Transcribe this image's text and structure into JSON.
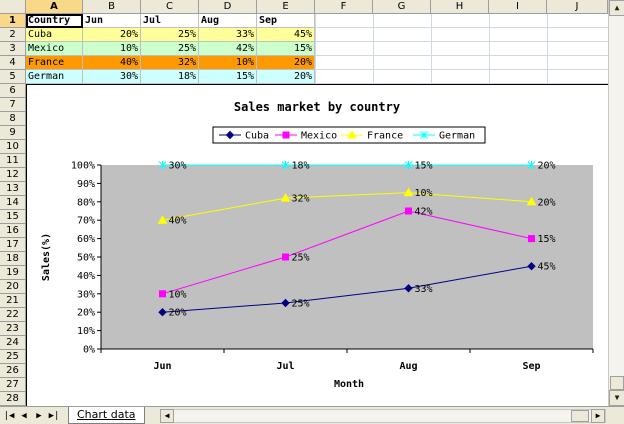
{
  "columns": [
    "A",
    "B",
    "C",
    "D",
    "E",
    "F",
    "G",
    "H",
    "I",
    "J"
  ],
  "rows": [
    "1",
    "2",
    "3",
    "4",
    "5",
    "6",
    "7",
    "8",
    "9",
    "10",
    "11",
    "12",
    "13",
    "14",
    "15",
    "16",
    "17",
    "18",
    "19",
    "20",
    "21",
    "22",
    "23",
    "24",
    "25",
    "26",
    "27",
    "28"
  ],
  "table": {
    "header": [
      "Country",
      "Jun",
      "Jul",
      "Aug",
      "Sep"
    ],
    "rows": [
      {
        "country": "Cuba",
        "values": [
          "20%",
          "25%",
          "33%",
          "45%"
        ],
        "fill": "#ffff99"
      },
      {
        "country": "Mexico",
        "values": [
          "10%",
          "25%",
          "42%",
          "15%"
        ],
        "fill": "#ccffcc"
      },
      {
        "country": "France",
        "values": [
          "40%",
          "32%",
          "10%",
          "20%"
        ],
        "fill": "#ff9900"
      },
      {
        "country": "German",
        "values": [
          "30%",
          "18%",
          "15%",
          "20%"
        ],
        "fill": "#ccffff"
      }
    ]
  },
  "chart_data": {
    "type": "line",
    "title": "Sales market by country",
    "xlabel": "Month",
    "ylabel": "Sales(%)",
    "categories": [
      "Jun",
      "Jul",
      "Aug",
      "Sep"
    ],
    "ylim": [
      0,
      100
    ],
    "yticks": [
      "0%",
      "10%",
      "20%",
      "30%",
      "40%",
      "50%",
      "60%",
      "70%",
      "80%",
      "90%",
      "100%"
    ],
    "legend_position": "top",
    "plot_background": "#c0c0c0",
    "stacked": "100%",
    "series": [
      {
        "name": "Cuba",
        "color": "#000080",
        "marker": "diamond",
        "values": [
          20,
          25,
          33,
          45
        ],
        "labels": [
          "20%",
          "25%",
          "33%",
          "45%"
        ]
      },
      {
        "name": "Mexico",
        "color": "#ff00ff",
        "marker": "square",
        "values": [
          30,
          50,
          75,
          60
        ],
        "labels": [
          "10%",
          "25%",
          "42%",
          "15%"
        ]
      },
      {
        "name": "France",
        "color": "#ffff00",
        "marker": "triangle",
        "values": [
          70,
          82,
          85,
          80
        ],
        "labels": [
          "40%",
          "32%",
          "10%",
          "20%"
        ]
      },
      {
        "name": "German",
        "color": "#00ffff",
        "marker": "x",
        "values": [
          100,
          100,
          100,
          100
        ],
        "labels": [
          "30%",
          "18%",
          "15%",
          "20%"
        ]
      }
    ]
  },
  "sheet_tab": "Chart data",
  "icons": {
    "first_sheet": "first-sheet-icon",
    "prev_sheet": "prev-sheet-icon",
    "next_sheet": "next-sheet-icon",
    "last_sheet": "last-sheet-icon"
  }
}
